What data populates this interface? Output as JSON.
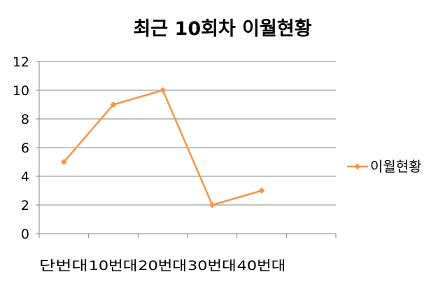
{
  "chart_data": {
    "type": "line",
    "title": "최근 10회차 이월현황",
    "categories": [
      "단번대",
      "10번대",
      "20번대",
      "30번대",
      "40번대"
    ],
    "series": [
      {
        "name": "이월현황",
        "values": [
          5,
          9,
          10,
          2,
          3
        ],
        "color": "#f79646",
        "marker": "diamond"
      }
    ],
    "ylim": [
      0,
      12
    ],
    "yticks": [
      0,
      2,
      4,
      6,
      8,
      10,
      12
    ],
    "grid": true,
    "legend": "right",
    "xlabel": "",
    "ylabel": ""
  }
}
